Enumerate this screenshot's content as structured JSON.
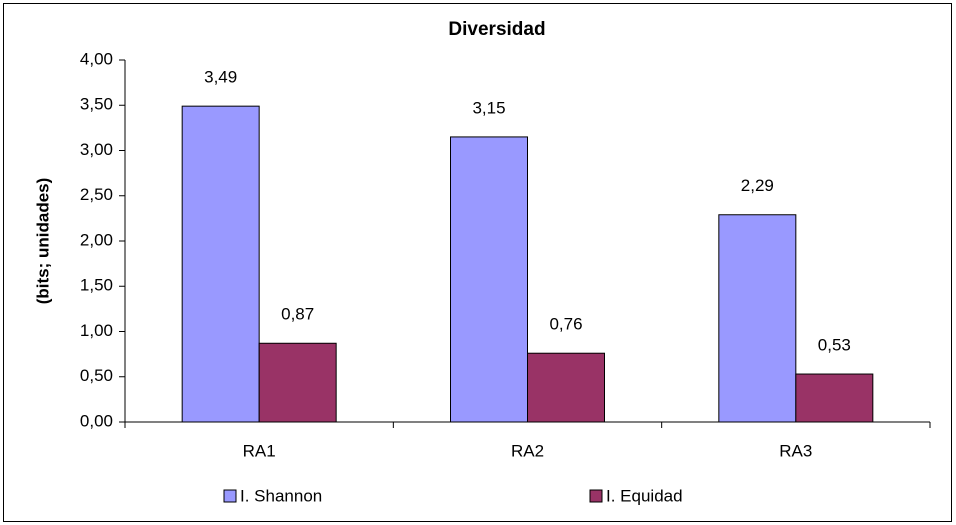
{
  "chart_data": {
    "type": "bar",
    "title": "Diversidad",
    "y_label": "(bits; unidades)",
    "categories": [
      "RA1",
      "RA2",
      "RA3"
    ],
    "series": [
      {
        "name": "I. Shannon",
        "color": "#9999ff",
        "values": [
          3.49,
          3.15,
          2.29
        ],
        "value_labels": [
          "3,49",
          "3,15",
          "2,29"
        ]
      },
      {
        "name": "I. Equidad",
        "color": "#993366",
        "values": [
          0.87,
          0.76,
          0.53
        ],
        "value_labels": [
          "0,87",
          "0,76",
          "0,53"
        ]
      }
    ],
    "ylim": [
      0,
      4
    ],
    "yticks": [
      {
        "value": 0,
        "label": "0,00"
      },
      {
        "value": 0.5,
        "label": "0,50"
      },
      {
        "value": 1,
        "label": "1,00"
      },
      {
        "value": 1.5,
        "label": "1,50"
      },
      {
        "value": 2,
        "label": "2,00"
      },
      {
        "value": 2.5,
        "label": "2,50"
      },
      {
        "value": 3,
        "label": "3,00"
      },
      {
        "value": 3.5,
        "label": "3,50"
      },
      {
        "value": 4,
        "label": "4,00"
      }
    ],
    "grid": false,
    "legend": "bottom"
  }
}
